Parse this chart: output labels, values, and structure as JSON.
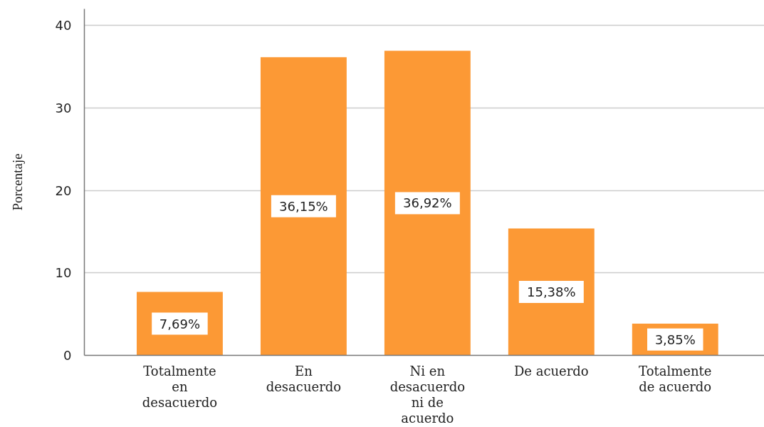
{
  "chart_data": {
    "type": "bar",
    "ylabel": "Porcentaje",
    "categories": [
      "Totalmente en desacuerdo",
      "En desacuerdo",
      "Ni en desacuerdo ni de acuerdo",
      "De acuerdo",
      "Totalmente de acuerdo"
    ],
    "values": [
      7.69,
      36.15,
      36.92,
      15.38,
      3.85
    ],
    "value_labels": [
      "7,69%",
      "36,15%",
      "36,92%",
      "15,38%",
      "3,85%"
    ],
    "color": "#fc9935",
    "ylim": [
      0,
      42
    ],
    "yticks": [
      0,
      10,
      20,
      30,
      40
    ],
    "grid": "y"
  }
}
